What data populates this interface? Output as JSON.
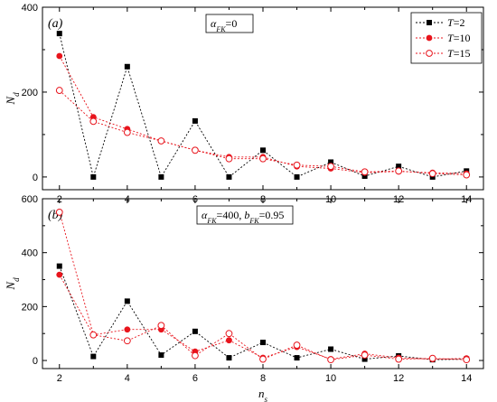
{
  "chart_data": [
    {
      "type": "scatter",
      "panel_label": "(a)",
      "annotation": {
        "sym": "α",
        "sub": "FK",
        "rest": "=0"
      },
      "xlabel": {
        "main": "n",
        "sub": "s"
      },
      "ylabel": {
        "main": "N",
        "sub": "d"
      },
      "xlim": [
        1.5,
        14.5
      ],
      "ylim": [
        -30,
        400
      ],
      "xticks": [
        2,
        4,
        6,
        8,
        10,
        12,
        14
      ],
      "yticks": [
        0,
        200,
        400
      ],
      "show_xlabel": false,
      "legend": {
        "placement": "top-right"
      },
      "x": [
        2,
        3,
        4,
        5,
        6,
        7,
        8,
        9,
        10,
        11,
        12,
        13,
        14
      ],
      "series": [
        {
          "name": "T=2",
          "name_italic": "T",
          "name_rest": "=2",
          "color": "#000000",
          "marker": "square",
          "values": [
            338,
            0,
            260,
            0,
            132,
            0,
            63,
            0,
            35,
            2,
            25,
            0,
            14
          ]
        },
        {
          "name": "T=10",
          "name_italic": "T",
          "name_rest": "=10",
          "color": "#e8141c",
          "marker": "circle-filled",
          "values": [
            285,
            141,
            113,
            85,
            63,
            47,
            47,
            25,
            20,
            10,
            13,
            10,
            8
          ]
        },
        {
          "name": "T=15",
          "name_italic": "T",
          "name_rest": "=15",
          "color": "#e8141c",
          "marker": "circle-open",
          "values": [
            204,
            131,
            105,
            85,
            63,
            43,
            43,
            28,
            25,
            12,
            14,
            8,
            5
          ]
        }
      ]
    },
    {
      "type": "scatter",
      "panel_label": "(b)",
      "annotation": {
        "sym": "α",
        "sub": "FK",
        "rest": "=400, ",
        "sym2": "b",
        "sub2": "FK",
        "rest2": "=0.95"
      },
      "xlabel": {
        "main": "n",
        "sub": "s"
      },
      "ylabel": {
        "main": "N",
        "sub": "d"
      },
      "xlim": [
        1.5,
        14.5
      ],
      "ylim": [
        -30,
        600
      ],
      "xticks": [
        2,
        4,
        6,
        8,
        10,
        12,
        14
      ],
      "yticks": [
        0,
        200,
        400,
        600
      ],
      "show_xlabel": true,
      "x": [
        2,
        3,
        4,
        5,
        6,
        7,
        8,
        9,
        10,
        11,
        12,
        13,
        14
      ],
      "series": [
        {
          "name": "T=2",
          "color": "#000000",
          "marker": "square",
          "values": [
            350,
            15,
            220,
            20,
            108,
            10,
            67,
            10,
            42,
            5,
            17,
            3,
            5
          ]
        },
        {
          "name": "T=10",
          "color": "#e8141c",
          "marker": "circle-filled",
          "values": [
            318,
            95,
            115,
            115,
            33,
            75,
            10,
            50,
            5,
            25,
            10,
            5,
            8
          ]
        },
        {
          "name": "T=15",
          "color": "#e8141c",
          "marker": "circle-open",
          "values": [
            550,
            95,
            73,
            130,
            18,
            100,
            5,
            57,
            3,
            20,
            5,
            8,
            3
          ]
        }
      ]
    }
  ]
}
